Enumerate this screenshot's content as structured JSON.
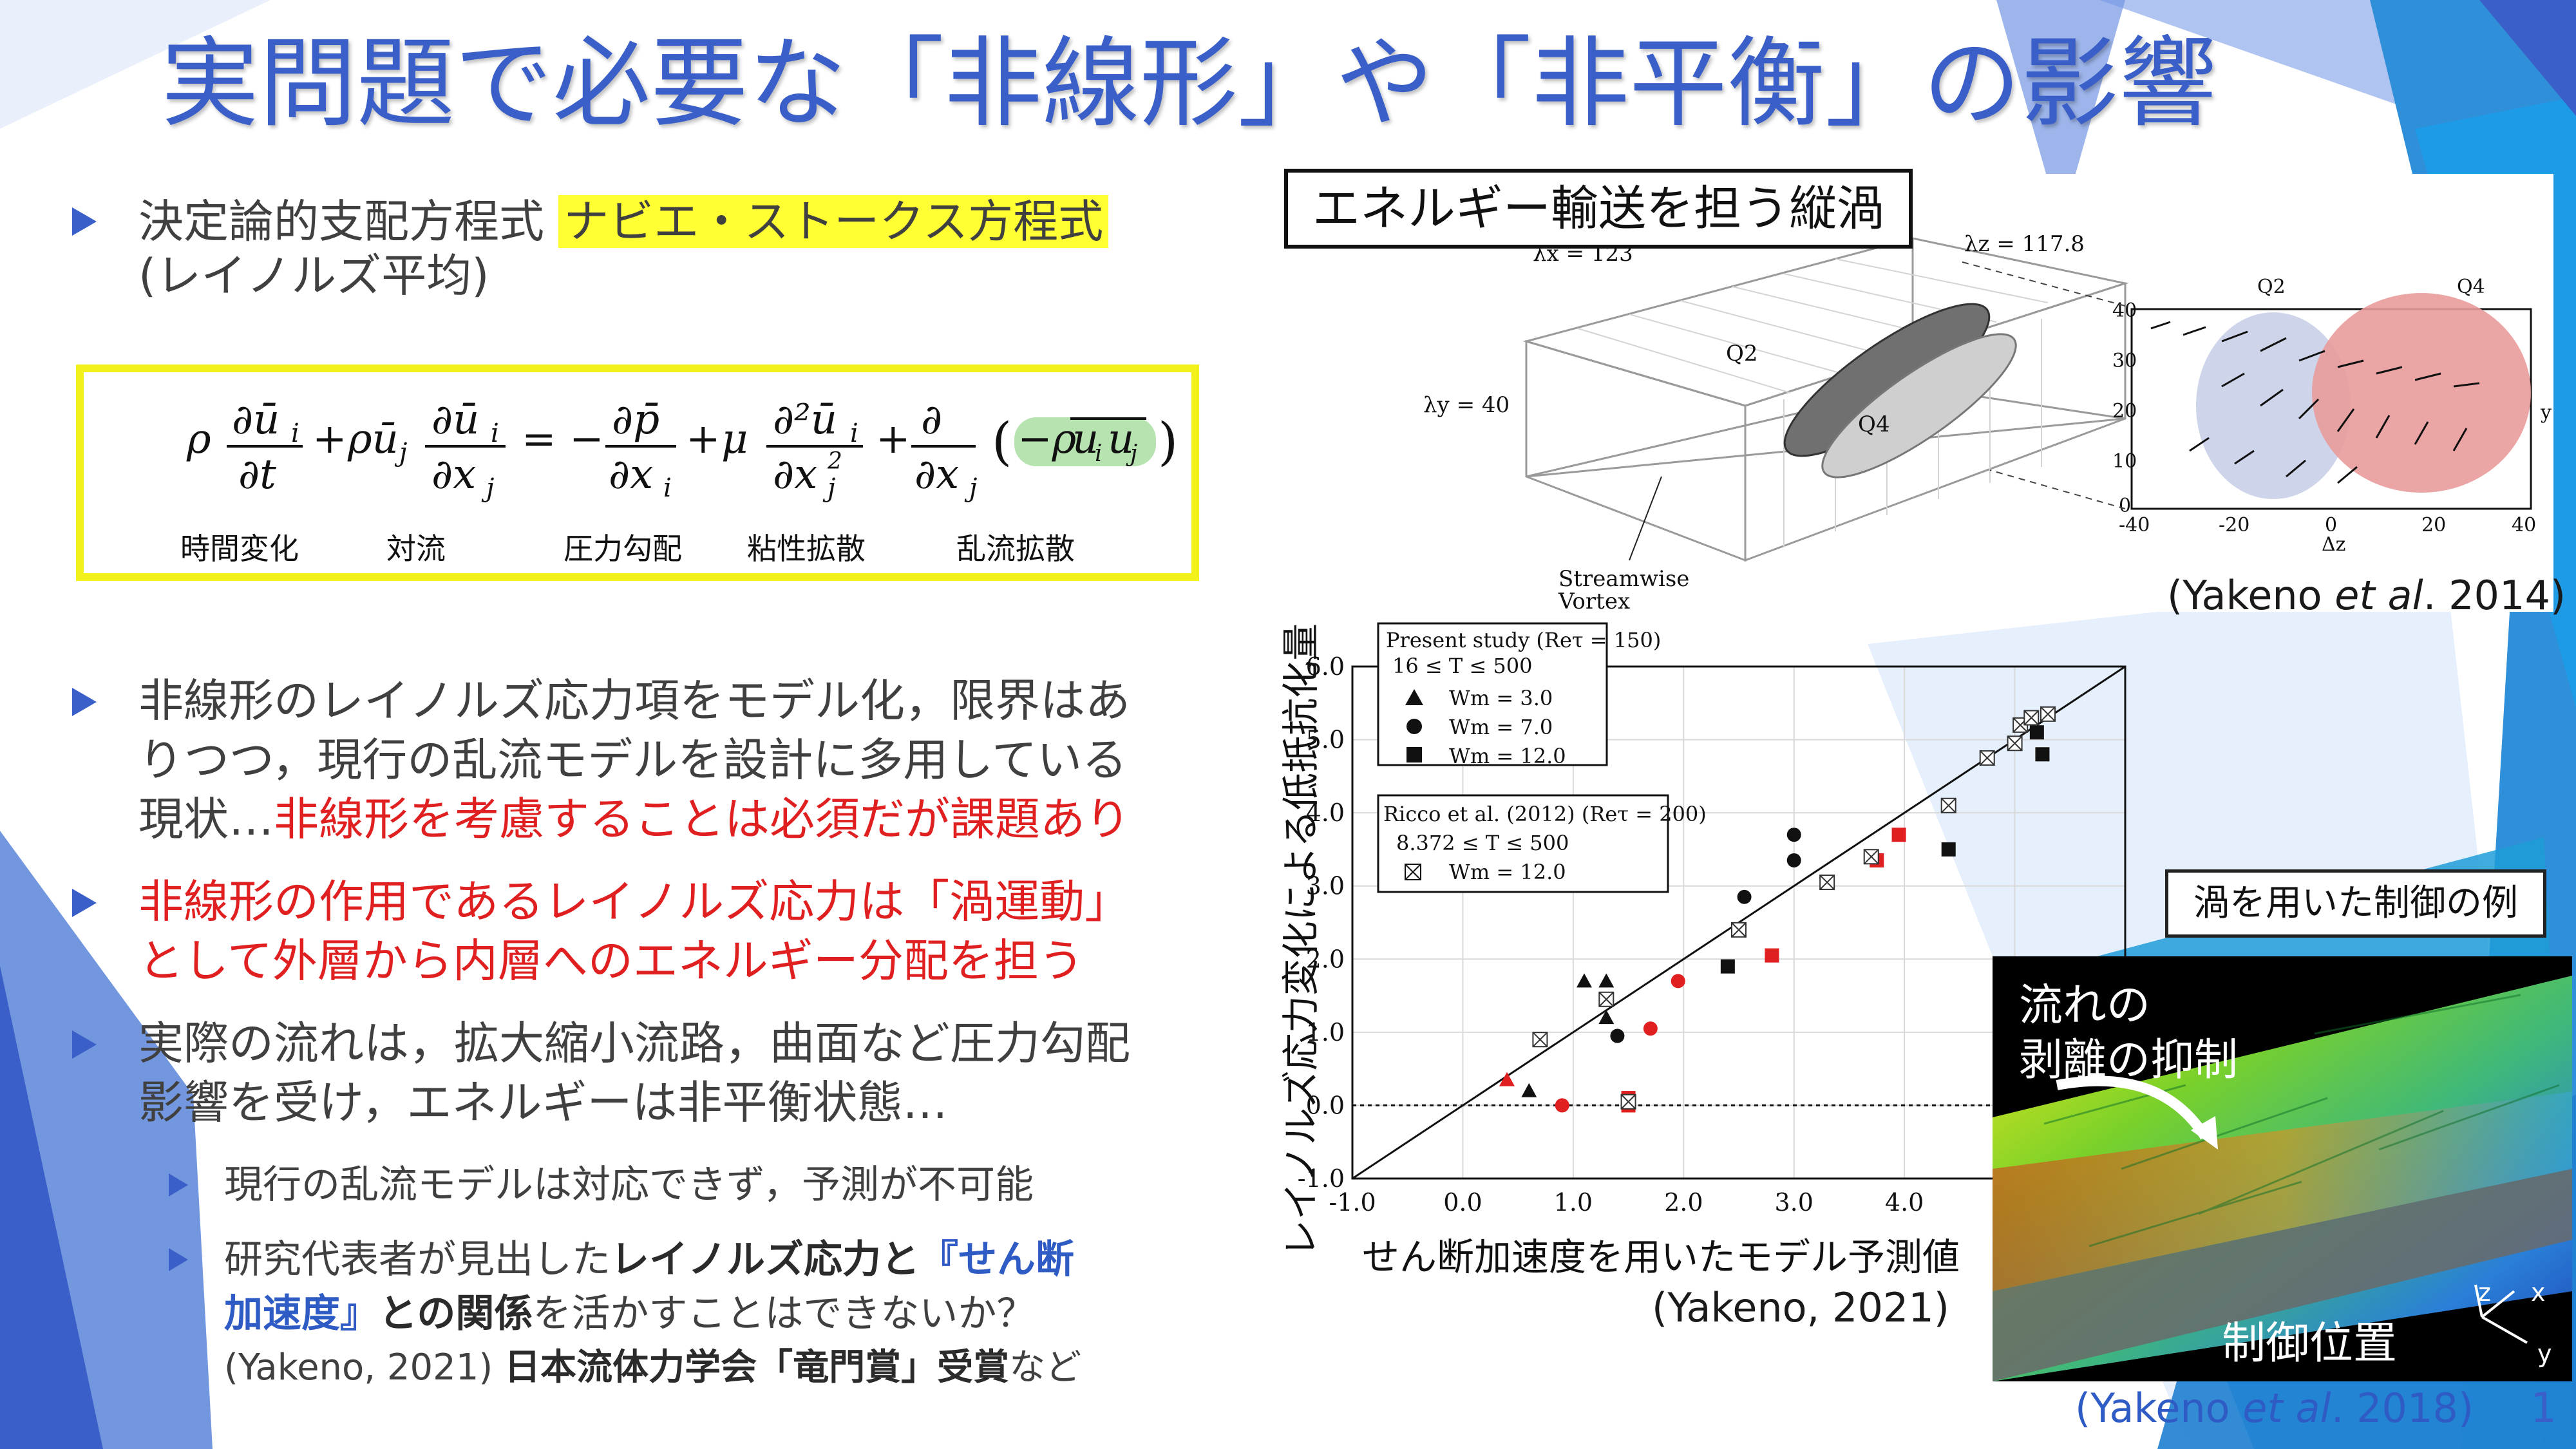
{
  "title": "実問題で必要な「非線形」や「非平衡」の影響",
  "bullets": {
    "b1_pre": "決定論的支配方程式",
    "b1_highlight": "ナビエ・ストークス方程式",
    "b1_line2": "(レイノルズ平均)",
    "b2_line1": "非線形のレイノルズ応力項をモデル化，限界はあ",
    "b2_line2": "りつつ，現行の乱流モデルを設計に多用している",
    "b2_line3_pre": "現状…",
    "b2_line3_red": "非線形を考慮することは必須だが課題あり",
    "b3_line1": "非線形の作用であるレイノルズ応力は「渦運動」",
    "b3_line2": "として外層から内層へのエネルギー分配を担う",
    "b4_line1": "実際の流れは，拡大縮小流路，曲面など圧力勾配",
    "b4_line2": "影響を受け，エネルギーは非平衡状態…",
    "s1": "現行の乱流モデルは対応できず，予測が不可能",
    "s2_pre": "研究代表者が見出した",
    "s2_bold1": "レイノルズ応力と",
    "s2_blue": "『せん断",
    "s2_blue2": "加速度』",
    "s2_bold2": "との関係",
    "s2_post": "を活かすことはできないか？",
    "s3_pre": "(Yakeno, 2021) ",
    "s3_bold": "日本流体力学会「竜門賞」受賞",
    "s3_post": "など"
  },
  "equation": {
    "labels": [
      "時間変化",
      "対流",
      "圧力勾配",
      "粘性拡散",
      "乱流拡散"
    ]
  },
  "vortex_figure": {
    "label": "エネルギー輸送を担う縦渦",
    "lambda_x": "λx = 123",
    "lambda_z": "λz = 117.8",
    "lambda_y": "λy = 40",
    "q2": "Q2",
    "q4": "Q4",
    "streamwise1": "Streamwise",
    "streamwise2": "Vortex",
    "contour_q2": "Q2",
    "contour_q4": "Q4",
    "contour_xlabel": "Δz",
    "contour_ylabel": "y",
    "contour_yticks": [
      "40",
      "30",
      "20",
      "10",
      "0"
    ],
    "contour_xticks": [
      "-40",
      "-20",
      "0",
      "20",
      "40"
    ],
    "caption_pre": "(Yakeno ",
    "caption_it": "et al",
    "caption_post": ". 2014)"
  },
  "chart": {
    "ylabel": "レイノルズ応力変化による低抵抗化量",
    "xlabel": "せん断加速度を用いたモデル予測値",
    "caption": "(Yakeno, 2021)",
    "legend1_title": "Present study (Reτ = 150)",
    "legend1_range": "16 ≤ T ≤ 500",
    "legend1_items": [
      "Wm = 3.0",
      "Wm = 7.0",
      "Wm = 12.0"
    ],
    "legend2_title": "Ricco et al. (2012) (Reτ = 200)",
    "legend2_range": "8.372 ≤ T ≤ 500",
    "legend2_item": "Wm = 12.0"
  },
  "chart_data": {
    "type": "scatter",
    "xlim": [
      -1.0,
      6.0
    ],
    "ylim": [
      -1.0,
      6.0
    ],
    "xticks": [
      "-1.0",
      "0.0",
      "1.0",
      "2.0",
      "3.0",
      "4.0"
    ],
    "yticks": [
      "-1.0",
      "0.0",
      "1.0",
      "2.0",
      "3.0",
      "4.0",
      "5.0",
      "6.0"
    ],
    "grid": true,
    "series": [
      {
        "name": "Wm = 3.0",
        "marker": "triangle",
        "points": [
          [
            0.6,
            0.2
          ],
          [
            1.1,
            1.7
          ],
          [
            1.3,
            1.7
          ],
          [
            1.3,
            1.2
          ],
          [
            0.4,
            0.35
          ],
          [
            0.7,
            0.9
          ]
        ]
      },
      {
        "name": "Wm = 7.0",
        "marker": "circle",
        "points": [
          [
            0.9,
            0.0
          ],
          [
            1.4,
            0.95
          ],
          [
            1.7,
            1.05
          ],
          [
            1.95,
            1.7
          ],
          [
            2.55,
            2.85
          ],
          [
            3.0,
            3.35
          ],
          [
            3.0,
            3.7
          ]
        ]
      },
      {
        "name": "Wm = 12.0",
        "marker": "square",
        "points": [
          [
            1.5,
            0.0
          ],
          [
            1.5,
            0.1
          ],
          [
            2.4,
            1.9
          ],
          [
            2.8,
            2.05
          ],
          [
            3.75,
            3.35
          ],
          [
            3.95,
            3.7
          ],
          [
            4.4,
            3.5
          ],
          [
            5.2,
            5.1
          ],
          [
            5.25,
            4.8
          ]
        ]
      },
      {
        "name": "Wm = 12.0 (Ricco)",
        "marker": "xsquare",
        "points": [
          [
            0.7,
            0.9
          ],
          [
            1.3,
            1.45
          ],
          [
            2.5,
            2.4
          ],
          [
            3.3,
            3.05
          ],
          [
            3.7,
            3.4
          ],
          [
            4.4,
            4.1
          ],
          [
            4.75,
            4.75
          ],
          [
            5.0,
            4.95
          ],
          [
            5.05,
            5.2
          ],
          [
            5.15,
            5.3
          ],
          [
            5.3,
            5.35
          ],
          [
            1.5,
            0.05
          ]
        ]
      }
    ],
    "red_points": [
      [
        0.4,
        0.35
      ],
      [
        0.7,
        0.9
      ],
      [
        0.9,
        0.0
      ],
      [
        1.7,
        1.05
      ],
      [
        1.95,
        1.7
      ],
      [
        1.5,
        0.0
      ],
      [
        1.5,
        0.1
      ],
      [
        2.8,
        2.05
      ],
      [
        3.75,
        3.35
      ],
      [
        3.95,
        3.7
      ]
    ]
  },
  "control_figure": {
    "label": "渦を用いた制御の例",
    "text1": "流れの",
    "text2": "剥離の抑制",
    "text3": "制御位置",
    "axis_x": "x",
    "axis_y": "y",
    "axis_z": "z",
    "caption_pre": "(Yakeno ",
    "caption_it": "et al",
    "caption_post": ". 2018)"
  },
  "page_number": "1",
  "colors": {
    "title": "#3a5fc9",
    "highlight": "#ffff33",
    "red": "#e02020",
    "eqbox": "#f2f21a"
  }
}
